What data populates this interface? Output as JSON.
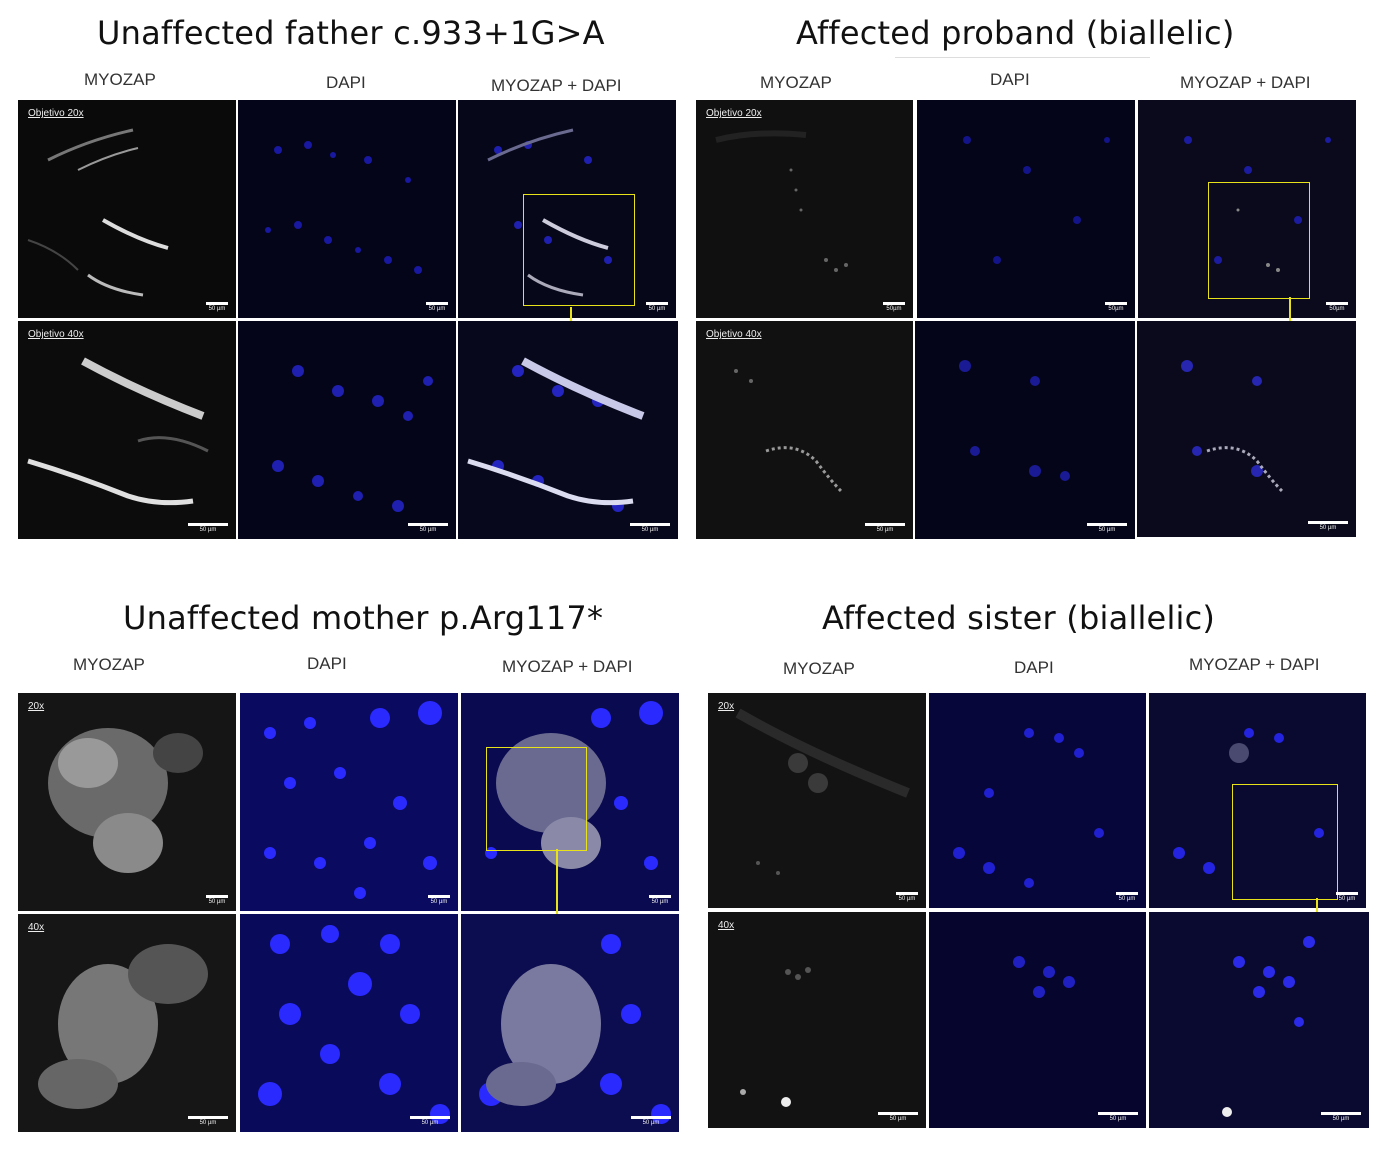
{
  "panels": [
    {
      "title": "Unaffected father c.933+1G>A",
      "channels": [
        "MYOZAP",
        "DAPI",
        "MYOZAP + DAPI"
      ],
      "row1_tag": "Objetivo 20x",
      "row2_tag": "Objetivo 40x",
      "row1_scale": "50 µm",
      "row2_scale": "50 µm"
    },
    {
      "title": "Affected proband (biallelic)",
      "channels": [
        "MYOZAP",
        "DAPI",
        "MYOZAP + DAPI"
      ],
      "row1_tag": "Objetivo 20x",
      "row2_tag": "Objetivo 40x",
      "row1_scale": "50µm",
      "row2_scale": "50 µm"
    },
    {
      "title": "Unaffected mother p.Arg117*",
      "channels": [
        "MYOZAP",
        "DAPI",
        "MYOZAP + DAPI"
      ],
      "row1_tag": "20x",
      "row2_tag": "40x",
      "row1_scale": "50 µm",
      "row2_scale": "50 µm"
    },
    {
      "title": "Affected sister (biallelic)",
      "channels": [
        "MYOZAP",
        "DAPI",
        "MYOZAP + DAPI"
      ],
      "row1_tag": "20x",
      "row2_tag": "40x",
      "row1_scale": "50 µm",
      "row2_scale": "50 µm"
    }
  ],
  "colors": {
    "zoom_box": "#e8e21a",
    "dapi": "#2a2aff",
    "myozap": "#d8d8d8"
  }
}
